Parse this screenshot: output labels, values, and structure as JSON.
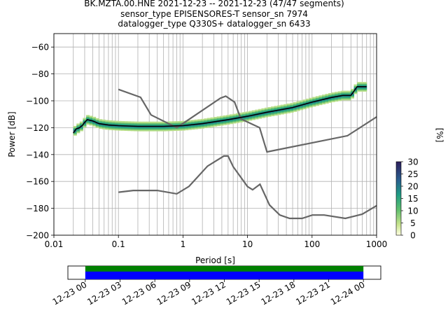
{
  "title_lines": [
    "BK.MZTA.00.HNE   2021-12-23 -- 2021-12-23  (47/47 segments)",
    "sensor_type EPISENSORES-T sensor_sn 7974",
    "datalogger_type Q330S+ datalogger_sn 6433"
  ],
  "chart_data": [
    {
      "type": "heatmap",
      "xlabel": "Period [s]",
      "ylabel": "Power [dB]",
      "x_scale": "log",
      "xlim": [
        0.01,
        1000
      ],
      "ylim": [
        -200,
        -50
      ],
      "x_ticks": [
        "0.01",
        "0.1",
        "1",
        "10",
        "100",
        "1000"
      ],
      "y_ticks": [
        "−60",
        "−80",
        "−100",
        "−120",
        "−140",
        "−160",
        "−180",
        "−200"
      ],
      "grid": true,
      "colorbar": {
        "label": "[%]",
        "range": [
          0,
          30
        ],
        "ticks": [
          "0",
          "5",
          "10",
          "15",
          "20",
          "25",
          "30"
        ]
      },
      "colors": {
        "mean_line": "#000000",
        "noise_models": "#666666",
        "cmap_low": "#ffffe0",
        "cmap_mid": "#2aa37a",
        "cmap_high": "#2d1e5c"
      },
      "series": [
        {
          "role": "mean",
          "points": [
            [
              0.02,
              -124
            ],
            [
              0.022,
              -121
            ],
            [
              0.025,
              -120
            ],
            [
              0.028,
              -118
            ],
            [
              0.03,
              -116
            ],
            [
              0.033,
              -114
            ],
            [
              0.04,
              -115
            ],
            [
              0.05,
              -117
            ],
            [
              0.07,
              -118
            ],
            [
              0.1,
              -118.5
            ],
            [
              0.2,
              -119
            ],
            [
              0.5,
              -119
            ],
            [
              1,
              -118.5
            ],
            [
              2,
              -117
            ],
            [
              5,
              -114
            ],
            [
              10,
              -111.5
            ],
            [
              20,
              -108.5
            ],
            [
              50,
              -105
            ],
            [
              100,
              -101
            ],
            [
              200,
              -97.5
            ],
            [
              300,
              -96
            ],
            [
              400,
              -96
            ],
            [
              500,
              -89.5
            ],
            [
              700,
              -89.5
            ]
          ]
        },
        {
          "role": "nhnm",
          "points": [
            [
              0.1,
              -91.5
            ],
            [
              0.22,
              -97.4
            ],
            [
              0.32,
              -110.5
            ],
            [
              0.8,
              -120
            ],
            [
              3.8,
              -98
            ],
            [
              4.6,
              -96.5
            ],
            [
              6.3,
              -101
            ],
            [
              7.9,
              -113.5
            ],
            [
              15.4,
              -120
            ],
            [
              20,
              -138
            ],
            [
              354,
              -126
            ],
            [
              1000,
              -112
            ]
          ]
        },
        {
          "role": "nlnm",
          "points": [
            [
              0.1,
              -168
            ],
            [
              0.17,
              -166.7
            ],
            [
              0.4,
              -166.7
            ],
            [
              0.8,
              -169.2
            ],
            [
              1.24,
              -163.7
            ],
            [
              2.4,
              -148.6
            ],
            [
              4.3,
              -141.1
            ],
            [
              5,
              -141.1
            ],
            [
              6,
              -149
            ],
            [
              10,
              -163.8
            ],
            [
              12,
              -166.2
            ],
            [
              15.6,
              -162.1
            ],
            [
              21.9,
              -177.5
            ],
            [
              31.6,
              -185
            ],
            [
              45,
              -187.5
            ],
            [
              70,
              -187.5
            ],
            [
              101,
              -185
            ],
            [
              154,
              -185
            ],
            [
              328,
              -187.5
            ],
            [
              600,
              -184.4
            ],
            [
              1000,
              -178
            ]
          ]
        }
      ]
    },
    {
      "type": "bar",
      "x_ticks": [
        "12-23 00",
        "12-23 03",
        "12-23 06",
        "12-23 09",
        "12-23 12",
        "12-23 15",
        "12-23 18",
        "12-23 21",
        "12-24 00"
      ],
      "x_range_hours": [
        -1.5,
        25.5
      ],
      "series": [
        {
          "role": "data-availability",
          "start_hours": 0,
          "end_hours": 24,
          "color": "#008000"
        },
        {
          "role": "psd-segments-used",
          "start_hours": 0,
          "end_hours": 24,
          "color": "#0000ff"
        }
      ]
    }
  ]
}
